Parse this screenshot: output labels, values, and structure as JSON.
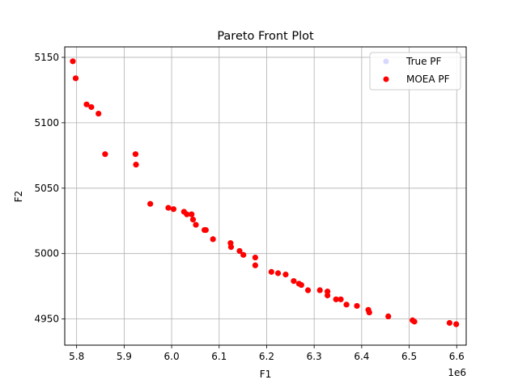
{
  "chart_data": {
    "type": "scatter",
    "title": "Pareto Front Plot",
    "xlabel": "F1",
    "ylabel": "F2",
    "x_offset_text": "1e6",
    "xlim": [
      5.775,
      6.62
    ],
    "ylim": [
      4930,
      5158
    ],
    "x_ticks": [
      5.8,
      5.9,
      6.0,
      6.1,
      6.2,
      6.3,
      6.4,
      6.5,
      6.6
    ],
    "x_tick_labels": [
      "5.8",
      "5.9",
      "6.0",
      "6.1",
      "6.2",
      "6.3",
      "6.4",
      "6.5",
      "6.6"
    ],
    "y_ticks": [
      4950,
      5000,
      5050,
      5100,
      5150
    ],
    "y_tick_labels": [
      "4950",
      "5000",
      "5050",
      "5100",
      "5150"
    ],
    "grid": true,
    "legend_position": "top-right",
    "series": [
      {
        "name": "True PF",
        "color": "#d8d8ff",
        "points": []
      },
      {
        "name": "MOEA PF",
        "color": "#ff0000",
        "points": [
          [
            5.792,
            5147
          ],
          [
            5.798,
            5134
          ],
          [
            5.821,
            5114
          ],
          [
            5.831,
            5112
          ],
          [
            5.846,
            5107
          ],
          [
            5.86,
            5076
          ],
          [
            5.924,
            5076
          ],
          [
            5.925,
            5068
          ],
          [
            5.955,
            5038
          ],
          [
            5.993,
            5035
          ],
          [
            6.004,
            5034
          ],
          [
            6.026,
            5032
          ],
          [
            6.032,
            5030
          ],
          [
            6.042,
            5030
          ],
          [
            6.045,
            5026
          ],
          [
            6.051,
            5022
          ],
          [
            6.069,
            5018
          ],
          [
            6.072,
            5018
          ],
          [
            6.087,
            5011
          ],
          [
            6.124,
            5008
          ],
          [
            6.125,
            5005
          ],
          [
            6.143,
            5002
          ],
          [
            6.151,
            4999
          ],
          [
            6.176,
            4997
          ],
          [
            6.176,
            4991
          ],
          [
            6.21,
            4986
          ],
          [
            6.224,
            4985
          ],
          [
            6.24,
            4984
          ],
          [
            6.257,
            4979
          ],
          [
            6.268,
            4977
          ],
          [
            6.273,
            4976
          ],
          [
            6.287,
            4972
          ],
          [
            6.312,
            4972
          ],
          [
            6.328,
            4971
          ],
          [
            6.328,
            4968
          ],
          [
            6.346,
            4965
          ],
          [
            6.356,
            4965
          ],
          [
            6.368,
            4961
          ],
          [
            6.39,
            4960
          ],
          [
            6.414,
            4957
          ],
          [
            6.416,
            4955
          ],
          [
            6.456,
            4952
          ],
          [
            6.507,
            4949
          ],
          [
            6.511,
            4948
          ],
          [
            6.585,
            4947
          ],
          [
            6.599,
            4946
          ]
        ]
      }
    ]
  }
}
